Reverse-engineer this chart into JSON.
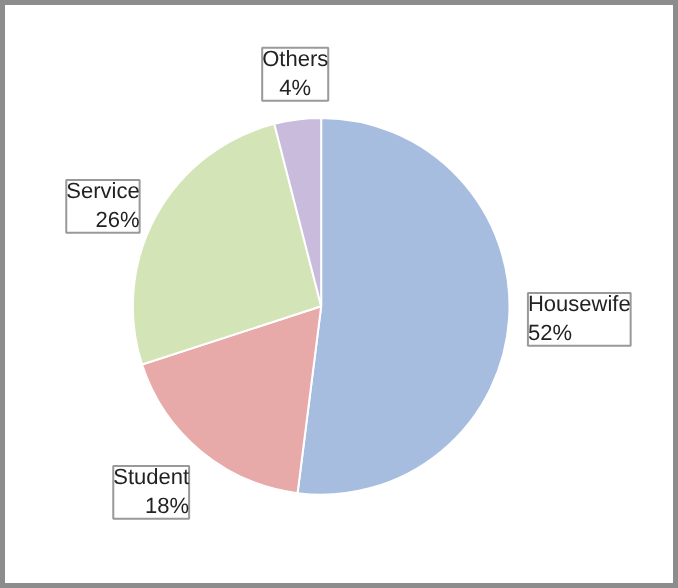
{
  "chart_data": {
    "type": "pie",
    "categories": [
      "Housewife",
      "Student",
      "Service",
      "Others"
    ],
    "values": [
      52,
      18,
      26,
      4
    ],
    "colors": [
      "#a7bde0",
      "#e8aaa8",
      "#d3e4b6",
      "#c9bbdc"
    ],
    "value_labels": [
      "52%",
      "18%",
      "26%",
      "4%"
    ],
    "legend": false
  }
}
